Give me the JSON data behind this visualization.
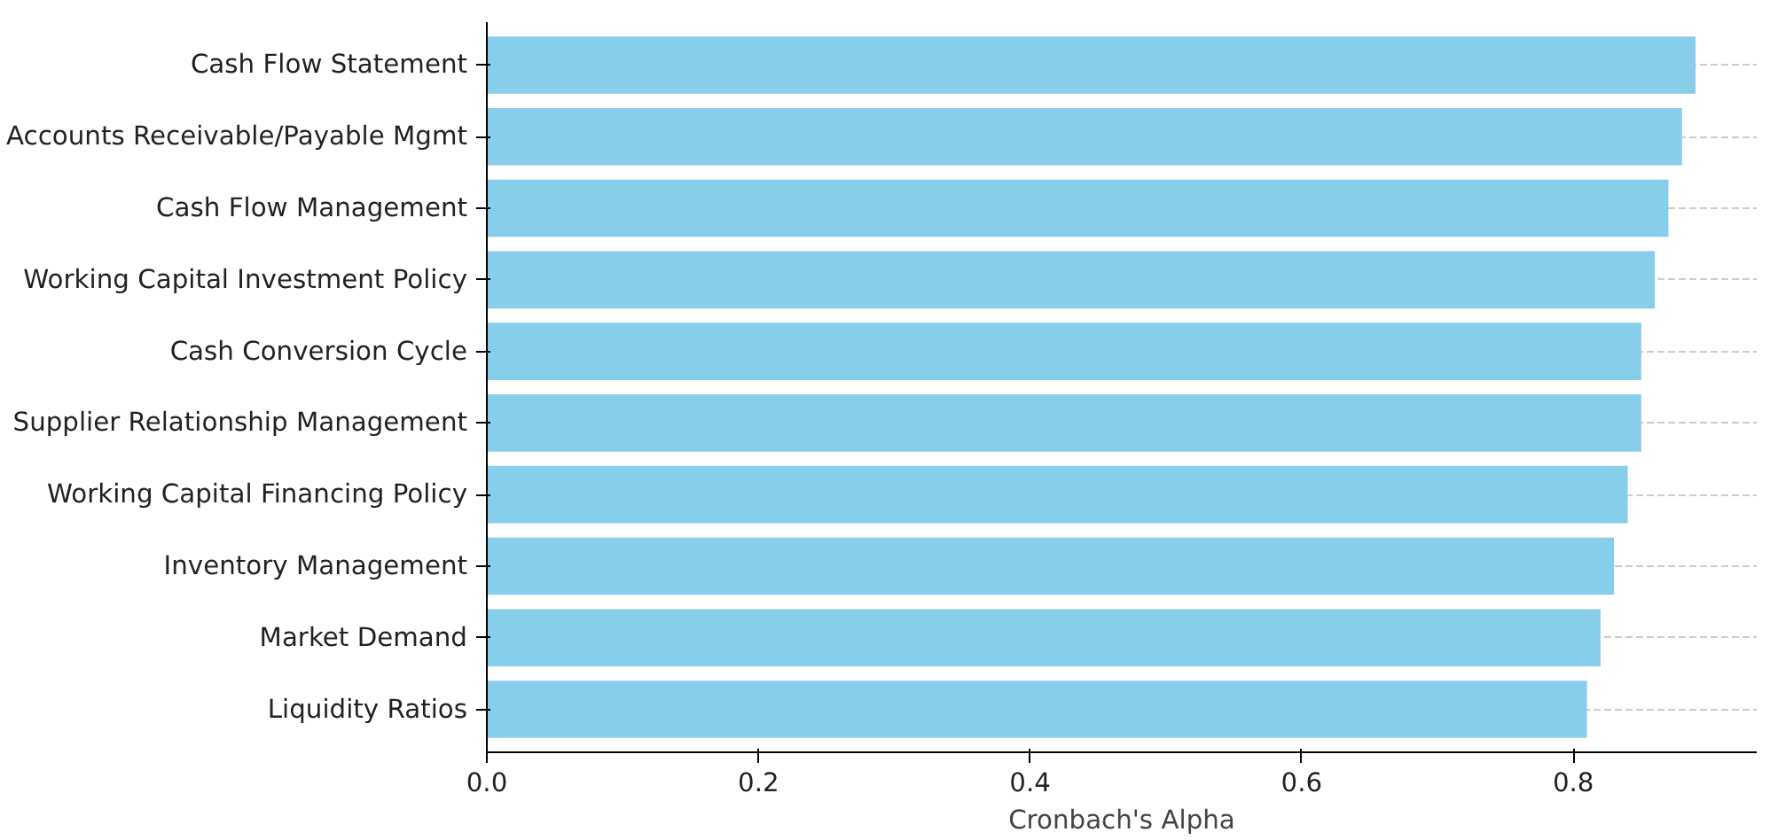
{
  "chart_data": {
    "type": "bar",
    "orientation": "horizontal",
    "xlabel": "Cronbach's Alpha",
    "categories": [
      "Cash Flow Statement",
      "Accounts Receivable/Payable Mgmt",
      "Cash Flow Management",
      "Working Capital Investment Policy",
      "Cash Conversion Cycle",
      "Supplier Relationship Management",
      "Working Capital Financing Policy",
      "Inventory Management",
      "Market Demand",
      "Liquidity Ratios"
    ],
    "values": [
      0.89,
      0.88,
      0.87,
      0.86,
      0.85,
      0.85,
      0.84,
      0.83,
      0.82,
      0.81
    ],
    "color": "#87ceeb",
    "xlim": [
      0,
      0.935
    ],
    "xticks": [
      {
        "value": 0,
        "label": "0.0"
      },
      {
        "value": 0.2,
        "label": "0.2"
      },
      {
        "value": 0.4,
        "label": "0.4"
      },
      {
        "value": 0.6,
        "label": "0.6"
      },
      {
        "value": 0.8,
        "label": "0.8"
      }
    ],
    "grid": "y"
  }
}
